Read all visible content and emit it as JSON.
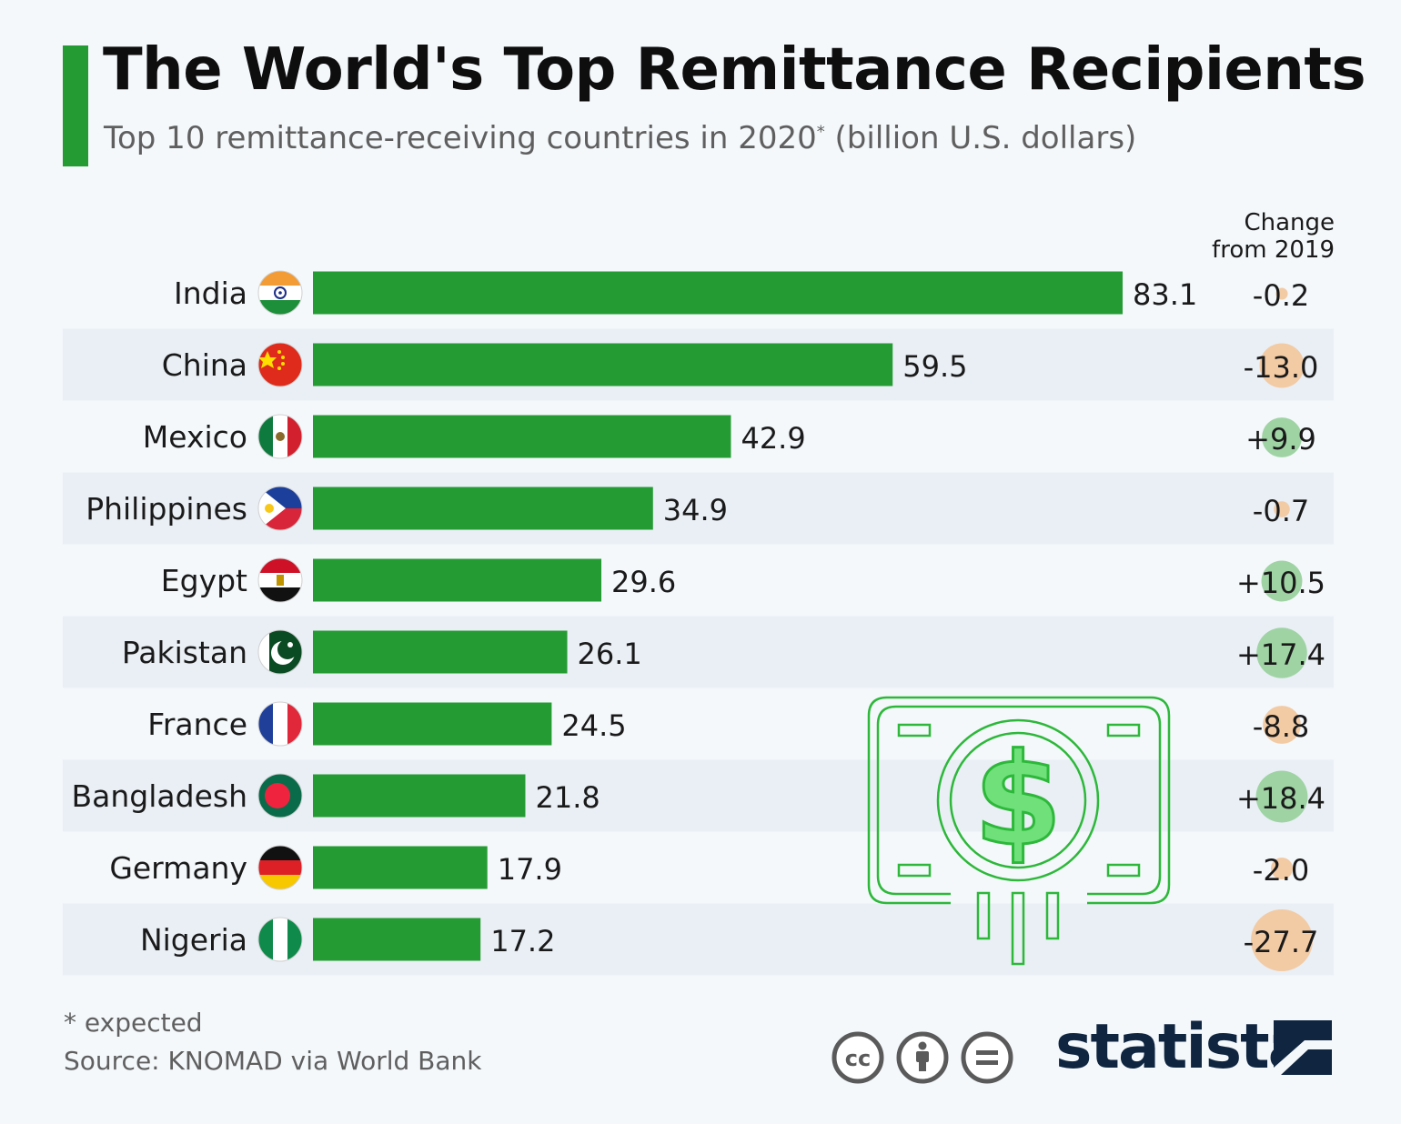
{
  "header": {
    "title": "The World's Top Remittance Recipients",
    "subtitle_main": "Top 10 remittance-receiving countries in 2020",
    "subtitle_mark": "*",
    "subtitle_unit": "(billion U.S. dollars)"
  },
  "change_header": [
    "Change",
    "from 2019"
  ],
  "colors": {
    "accent": "#259b33",
    "bar": "#259b33",
    "positive_bubble": "#9fd3a4",
    "negative_bubble": "#f2cba5",
    "stripe": "#e9eff5",
    "icon_stroke": "#2db83a",
    "dollar_fill": "#6fe07a"
  },
  "chart_data": {
    "type": "bar",
    "orientation": "horizontal",
    "title": "The World's Top Remittance Recipients",
    "unit": "billion U.S. dollars",
    "categories": [
      "India",
      "China",
      "Mexico",
      "Philippines",
      "Egypt",
      "Pakistan",
      "France",
      "Bangladesh",
      "Germany",
      "Nigeria"
    ],
    "values": [
      83.1,
      59.5,
      42.9,
      34.9,
      29.6,
      26.1,
      24.5,
      21.8,
      17.9,
      17.2
    ],
    "value_labels": [
      "83.1",
      "59.5",
      "42.9",
      "34.9",
      "29.6",
      "26.1",
      "24.5",
      "21.8",
      "17.9",
      "17.2"
    ],
    "change_from_2019": [
      -0.2,
      -13.0,
      9.9,
      -0.7,
      10.5,
      17.4,
      -8.8,
      18.4,
      -2.0,
      -27.7
    ],
    "change_labels": [
      "-0.2",
      "-13.0",
      "+9.9",
      "-0.7",
      "+10.5",
      "+17.4",
      "-8.8",
      "+18.4",
      "-2.0",
      "-27.7"
    ],
    "flag_icons": [
      "india-flag-icon",
      "china-flag-icon",
      "mexico-flag-icon",
      "philippines-flag-icon",
      "egypt-flag-icon",
      "pakistan-flag-icon",
      "france-flag-icon",
      "bangladesh-flag-icon",
      "germany-flag-icon",
      "nigeria-flag-icon"
    ],
    "xlim": [
      0,
      83.1
    ],
    "grid": false,
    "legend": "none"
  },
  "footer": {
    "footnote": "* expected",
    "source": "Source: KNOMAD via World Bank",
    "brand": "statista",
    "license_icons": [
      "cc-icon",
      "attribution-icon",
      "no-derivatives-icon"
    ]
  }
}
